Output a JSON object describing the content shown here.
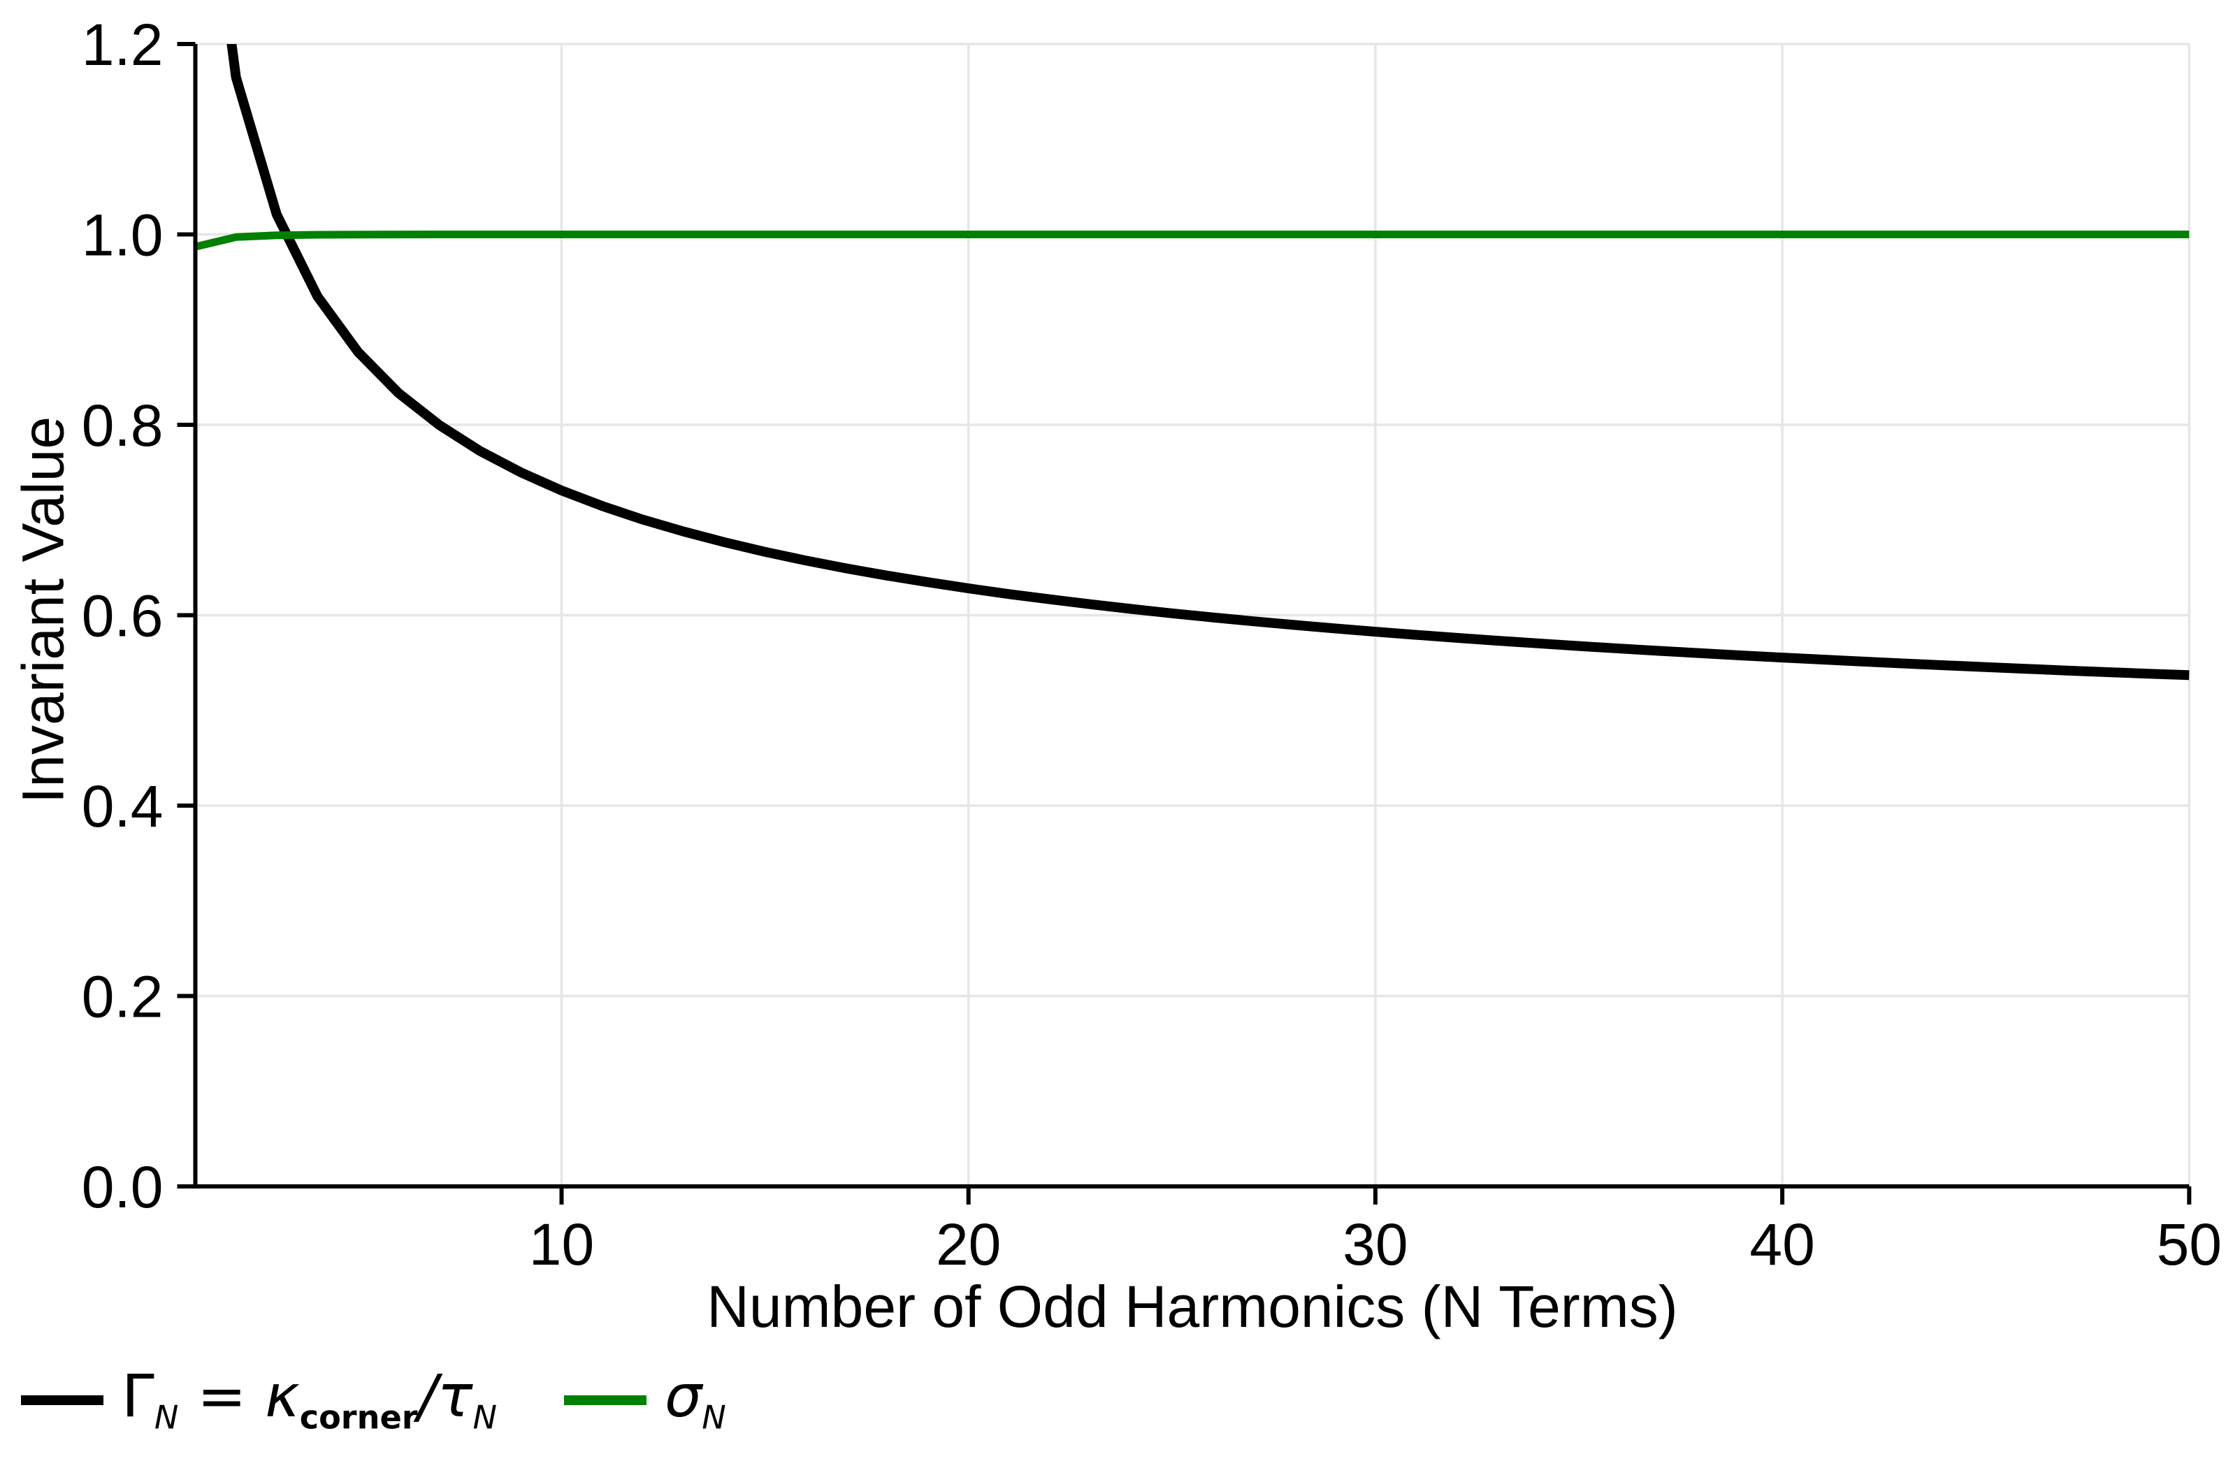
{
  "figure": {
    "background": "#ffffff",
    "grid_color": "#e6e6e6",
    "axis_color": "#000000",
    "text_color": "#000000"
  },
  "chart_data": {
    "type": "line",
    "title": "",
    "xlabel": "Number of Odd Harmonics (N Terms)",
    "ylabel": "Invariant Value",
    "xlim": [
      1,
      50
    ],
    "ylim": [
      0.0,
      1.2
    ],
    "xticks": [
      10,
      20,
      30,
      40,
      50
    ],
    "xtick_labels": [
      "10",
      "20",
      "30",
      "40",
      "50"
    ],
    "yticks": [
      0.0,
      0.2,
      0.4,
      0.6,
      0.8,
      1.0,
      1.2
    ],
    "ytick_labels": [
      "0.0",
      "0.2",
      "0.4",
      "0.6",
      "0.8",
      "1.0",
      "1.2"
    ],
    "grid": true,
    "legend_position": "bottom-left-outside",
    "x": [
      1,
      2,
      3,
      4,
      5,
      6,
      7,
      8,
      9,
      10,
      11,
      12,
      13,
      14,
      15,
      16,
      17,
      18,
      19,
      20,
      21,
      22,
      23,
      24,
      25,
      26,
      27,
      28,
      29,
      30,
      31,
      32,
      33,
      34,
      35,
      36,
      37,
      38,
      39,
      40,
      41,
      42,
      43,
      44,
      45,
      46,
      47,
      48,
      49,
      50
    ],
    "series": [
      {
        "name": "gamma_ratio",
        "label": "Γ_N = κ_corner/τ_N",
        "color": "#000000",
        "line_width": 14,
        "values": [
          1.49,
          1.1649,
          1.0209,
          0.935,
          0.8764,
          0.8331,
          0.7996,
          0.7724,
          0.75,
          0.731,
          0.7147,
          0.7004,
          0.6879,
          0.6767,
          0.6666,
          0.6575,
          0.6492,
          0.6416,
          0.6347,
          0.6282,
          0.6222,
          0.6167,
          0.6115,
          0.6066,
          0.602,
          0.5977,
          0.5936,
          0.5898,
          0.5861,
          0.5827,
          0.5794,
          0.5762,
          0.5732,
          0.5704,
          0.5676,
          0.565,
          0.5625,
          0.5601,
          0.5577,
          0.5555,
          0.5534,
          0.5513,
          0.5493,
          0.5474,
          0.5455,
          0.5437,
          0.5419,
          0.5402,
          0.5386,
          0.537
        ]
      },
      {
        "name": "sigma",
        "label": "σ_N",
        "color": "#008000",
        "line_width": 11,
        "values": [
          0.987,
          0.9972,
          0.9991,
          0.9996,
          0.9998,
          0.9999,
          1.0,
          1.0,
          1.0,
          1.0,
          1.0,
          1.0,
          1.0,
          1.0,
          1.0,
          1.0,
          1.0,
          1.0,
          1.0,
          1.0,
          1.0,
          1.0,
          1.0,
          1.0,
          1.0,
          1.0,
          1.0,
          1.0,
          1.0,
          1.0,
          1.0,
          1.0,
          1.0,
          1.0,
          1.0,
          1.0,
          1.0,
          1.0,
          1.0,
          1.0,
          1.0,
          1.0,
          1.0,
          1.0,
          1.0,
          1.0,
          1.0,
          1.0,
          1.0,
          1.0
        ]
      }
    ],
    "legend": {
      "entries": [
        {
          "series": "gamma_ratio",
          "color": "#000000",
          "parts": [
            {
              "t": "Γ"
            },
            {
              "t": "N",
              "sub": true,
              "italic": true
            },
            {
              "t": " = "
            },
            {
              "t": "κ",
              "italic": true
            },
            {
              "t": "corner",
              "sub": true,
              "bold": true
            },
            {
              "t": "/",
              "italic": true
            },
            {
              "t": "τ",
              "italic": true
            },
            {
              "t": "N",
              "sub": true,
              "italic": true
            }
          ]
        },
        {
          "series": "sigma",
          "color": "#008000",
          "parts": [
            {
              "t": "σ",
              "italic": true
            },
            {
              "t": "N",
              "sub": true,
              "italic": true
            }
          ]
        }
      ]
    }
  }
}
